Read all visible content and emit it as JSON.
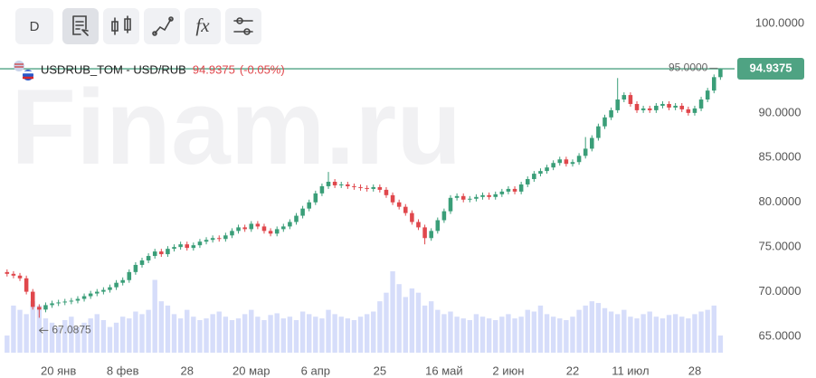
{
  "watermark": "Finam.ru",
  "toolbar": {
    "interval": "D",
    "function": "fx"
  },
  "chart_data": {
    "type": "candlestick",
    "symbol": "USDRUB_TOM - USD/RUB",
    "change_label": "(-0.05%)",
    "up_color": "#3a9e78",
    "down_color": "#e0474c",
    "volume_color": "#d6ddfa",
    "last_line_color": "#4fa383",
    "max_marker": {
      "value": 95,
      "label": "95.0000"
    },
    "min_marker": {
      "value": 67.0875,
      "label": "67.0875"
    },
    "xlim": [
      -1.1,
      113.2
    ],
    "xticks": [
      {
        "value": 8,
        "label": "20 янв"
      },
      {
        "value": 18,
        "label": "8 фев"
      },
      {
        "value": 28,
        "label": "28"
      },
      {
        "value": 38,
        "label": "20 мар"
      },
      {
        "value": 48,
        "label": "6 апр"
      },
      {
        "value": 58,
        "label": "25"
      },
      {
        "value": 68,
        "label": "16 май"
      },
      {
        "value": 78,
        "label": "2 июн"
      },
      {
        "value": 88,
        "label": "22"
      },
      {
        "value": 97,
        "label": "11 июл"
      },
      {
        "value": 107,
        "label": "28"
      }
    ],
    "ylim": [
      62.17,
      102.63
    ],
    "yticks": [
      {
        "value": 65,
        "label": "65.0000"
      },
      {
        "value": 70,
        "label": "70.0000"
      },
      {
        "value": 75,
        "label": "75.0000"
      },
      {
        "value": 80,
        "label": "80.0000"
      },
      {
        "value": 85,
        "label": "85.0000"
      },
      {
        "value": 90,
        "label": "90.0000"
      },
      {
        "value": 95,
        "label": "95.0000"
      },
      {
        "value": 100,
        "label": "100.0000"
      }
    ],
    "open": [
      72.2,
      72.0,
      71.8,
      71.5,
      70.0,
      68.3,
      68.0,
      68.5,
      68.7,
      68.8,
      68.9,
      69.0,
      69.2,
      69.5,
      69.8,
      70.0,
      70.2,
      70.5,
      71.0,
      71.3,
      72.2,
      73.0,
      73.5,
      74.0,
      74.5,
      74.2,
      74.8,
      75.0,
      75.3,
      74.9,
      75.2,
      75.6,
      75.8,
      76.0,
      75.9,
      76.3,
      76.8,
      77.2,
      77.0,
      77.6,
      77.3,
      76.8,
      76.5,
      77.0,
      77.3,
      77.8,
      78.5,
      79.3,
      80.0,
      81.0,
      81.8,
      82.3,
      81.9,
      82.0,
      81.8,
      81.7,
      81.6,
      81.5,
      81.7,
      81.4,
      80.8,
      80.0,
      79.5,
      78.8,
      77.8,
      77.2,
      76.0,
      76.8,
      78.0,
      79.0,
      80.5,
      80.7,
      80.3,
      80.4,
      80.6,
      80.8,
      80.6,
      80.9,
      81.2,
      81.5,
      81.2,
      82.0,
      82.6,
      83.2,
      83.5,
      83.9,
      84.4,
      84.8,
      84.3,
      84.5,
      85.2,
      86.0,
      87.2,
      88.5,
      89.5,
      90.3,
      91.5,
      92.0,
      91.0,
      90.3,
      90.5,
      90.3,
      90.8,
      91.0,
      90.6,
      90.8,
      90.4,
      90.0,
      90.5,
      91.5,
      92.5,
      94.0
    ],
    "high": [
      72.5,
      72.3,
      72.1,
      71.8,
      70.3,
      68.6,
      68.8,
      69.0,
      69.1,
      69.2,
      69.3,
      69.5,
      69.8,
      70.1,
      70.3,
      70.5,
      70.8,
      71.3,
      71.6,
      72.5,
      73.3,
      73.8,
      74.3,
      74.8,
      74.8,
      75.1,
      75.3,
      75.6,
      75.6,
      75.5,
      75.9,
      76.1,
      76.3,
      76.3,
      76.6,
      77.1,
      77.5,
      77.5,
      77.9,
      77.9,
      77.6,
      77.1,
      77.3,
      77.6,
      78.1,
      78.8,
      79.6,
      80.3,
      81.3,
      82.1,
      83.4,
      82.6,
      82.3,
      82.3,
      82.1,
      82.0,
      81.9,
      82.0,
      82.0,
      81.7,
      81.1,
      80.3,
      79.8,
      79.1,
      78.1,
      77.5,
      77.1,
      78.3,
      79.3,
      80.8,
      81.0,
      81.0,
      80.7,
      80.9,
      81.1,
      81.1,
      81.2,
      81.5,
      81.8,
      81.8,
      82.3,
      82.9,
      83.5,
      83.8,
      84.2,
      84.7,
      85.1,
      85.1,
      84.8,
      85.5,
      87.3,
      87.5,
      88.8,
      89.8,
      90.6,
      93.9,
      92.3,
      92.3,
      91.3,
      90.8,
      90.8,
      91.1,
      91.3,
      91.3,
      91.1,
      91.1,
      90.7,
      90.8,
      91.8,
      92.8,
      94.3,
      95.0
    ],
    "low": [
      71.7,
      71.5,
      71.2,
      69.7,
      68.0,
      67.0875,
      67.7,
      68.2,
      68.4,
      68.5,
      68.6,
      68.7,
      68.9,
      69.2,
      69.5,
      69.7,
      69.9,
      70.2,
      70.7,
      71.0,
      71.9,
      72.7,
      73.2,
      73.7,
      73.9,
      73.9,
      74.5,
      74.7,
      74.6,
      74.6,
      74.9,
      75.3,
      75.5,
      75.6,
      75.6,
      76.0,
      76.5,
      76.7,
      76.7,
      77.0,
      76.5,
      76.2,
      76.2,
      76.7,
      77.0,
      77.5,
      78.2,
      79.0,
      79.7,
      80.7,
      81.5,
      81.6,
      81.6,
      81.5,
      81.4,
      81.3,
      81.2,
      81.2,
      81.1,
      80.5,
      79.7,
      79.2,
      78.5,
      77.5,
      76.9,
      75.3,
      75.7,
      76.5,
      77.7,
      78.7,
      80.2,
      80.0,
      80.0,
      80.1,
      80.3,
      80.3,
      80.3,
      80.6,
      80.9,
      80.9,
      80.9,
      81.7,
      82.3,
      82.9,
      83.2,
      83.6,
      84.1,
      84.0,
      84.0,
      84.2,
      84.9,
      85.7,
      86.9,
      88.2,
      89.2,
      90.0,
      91.2,
      90.7,
      90.0,
      90.0,
      90.0,
      90.0,
      90.5,
      90.3,
      90.3,
      90.1,
      89.7,
      89.7,
      90.2,
      91.2,
      92.2,
      93.7
    ],
    "close": [
      72.0,
      71.8,
      71.5,
      70.0,
      68.3,
      68.0,
      68.5,
      68.7,
      68.8,
      68.9,
      69.0,
      69.2,
      69.5,
      69.8,
      70.0,
      70.2,
      70.5,
      71.0,
      71.3,
      72.2,
      73.0,
      73.5,
      74.0,
      74.5,
      74.2,
      74.8,
      75.0,
      75.3,
      74.9,
      75.2,
      75.6,
      75.8,
      76.0,
      75.9,
      76.3,
      76.8,
      77.2,
      77.0,
      77.6,
      77.3,
      76.8,
      76.5,
      77.0,
      77.3,
      77.8,
      78.5,
      79.3,
      80.0,
      81.0,
      81.8,
      82.3,
      81.9,
      82.0,
      81.8,
      81.7,
      81.6,
      81.5,
      81.7,
      81.4,
      80.8,
      80.0,
      79.5,
      78.8,
      77.8,
      77.2,
      76.0,
      76.8,
      78.0,
      79.0,
      80.5,
      80.7,
      80.3,
      80.4,
      80.6,
      80.8,
      80.6,
      80.9,
      81.2,
      81.5,
      81.2,
      82.0,
      82.6,
      83.2,
      83.5,
      83.9,
      84.4,
      84.8,
      84.3,
      84.5,
      85.2,
      86.0,
      87.2,
      88.5,
      89.5,
      90.3,
      91.5,
      92.0,
      91.0,
      90.3,
      90.5,
      90.3,
      90.8,
      91.0,
      90.6,
      90.8,
      90.4,
      90.0,
      90.5,
      91.5,
      92.5,
      94.0,
      94.9375
    ],
    "volume": [
      20,
      55,
      50,
      45,
      60,
      55,
      40,
      35,
      30,
      38,
      42,
      30,
      35,
      40,
      45,
      38,
      30,
      35,
      42,
      40,
      48,
      45,
      50,
      85,
      60,
      55,
      45,
      40,
      50,
      42,
      38,
      40,
      45,
      48,
      42,
      38,
      40,
      45,
      50,
      42,
      38,
      44,
      46,
      40,
      42,
      38,
      48,
      45,
      42,
      40,
      50,
      45,
      42,
      40,
      38,
      42,
      45,
      48,
      60,
      70,
      95,
      80,
      65,
      75,
      70,
      55,
      60,
      50,
      45,
      48,
      42,
      40,
      38,
      45,
      42,
      40,
      38,
      42,
      45,
      40,
      42,
      50,
      48,
      55,
      45,
      42,
      40,
      38,
      42,
      50,
      55,
      60,
      58,
      52,
      48,
      45,
      50,
      42,
      40,
      45,
      48,
      42,
      40,
      44,
      45,
      42,
      40,
      45,
      48,
      50,
      55,
      20
    ]
  }
}
